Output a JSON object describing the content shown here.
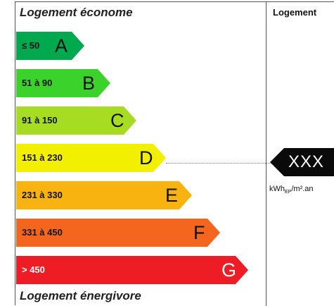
{
  "top_label": "Logement économe",
  "bottom_label": "Logement énergivore",
  "right_header": "Logement",
  "classes": [
    {
      "range": "≤ 50",
      "letter": "A",
      "color": "#00a84e"
    },
    {
      "range": "51 à 90",
      "letter": "B",
      "color": "#3bd22c"
    },
    {
      "range": "91 à 150",
      "letter": "C",
      "color": "#a6dc22"
    },
    {
      "range": "151 à 230",
      "letter": "D",
      "color": "#f2f000"
    },
    {
      "range": "231 à 330",
      "letter": "E",
      "color": "#f9b310"
    },
    {
      "range": "331 à 450",
      "letter": "F",
      "color": "#f4651e"
    },
    {
      "range": "> 450",
      "letter": "G",
      "color": "#ee1c25"
    }
  ],
  "marker": {
    "value": "XXX",
    "class": "D",
    "color": "#0a0a0a"
  },
  "unit": "kWhEP/m².an"
}
